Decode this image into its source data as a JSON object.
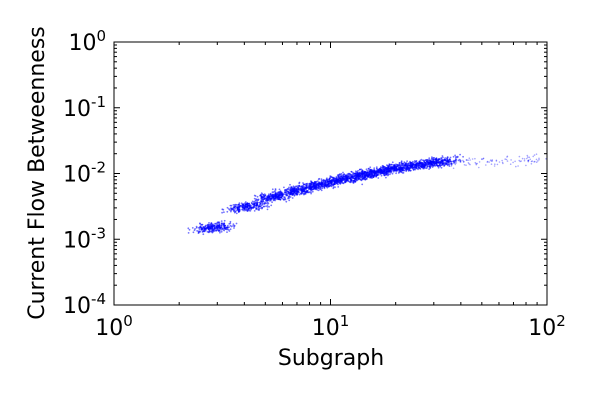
{
  "chart_data": {
    "type": "scatter",
    "xlabel": "Subgraph",
    "ylabel": "Current Flow Betweenness",
    "x_scale": "log",
    "y_scale": "log",
    "xlim": [
      1,
      100
    ],
    "ylim": [
      0.0001,
      1
    ],
    "grid": false,
    "x_ticks": [
      {
        "value": 1,
        "base": "10",
        "exp": "0"
      },
      {
        "value": 10,
        "base": "10",
        "exp": "1"
      },
      {
        "value": 100,
        "base": "10",
        "exp": "2"
      }
    ],
    "y_ticks": [
      {
        "value": 0.0001,
        "base": "10",
        "exp": "-4"
      },
      {
        "value": 0.001,
        "base": "10",
        "exp": "-3"
      },
      {
        "value": 0.01,
        "base": "10",
        "exp": "-2"
      },
      {
        "value": 0.1,
        "base": "10",
        "exp": "-1"
      },
      {
        "value": 1,
        "base": "10",
        "exp": "0"
      }
    ],
    "marker_color": "#0000ff",
    "clusters": [
      {
        "x": 2.9,
        "y": 0.0015
      },
      {
        "x": 4.1,
        "y": 0.0031
      },
      {
        "x": 5.5,
        "y": 0.0044
      },
      {
        "x": 7.0,
        "y": 0.0055
      },
      {
        "x": 8.8,
        "y": 0.0067
      },
      {
        "x": 11.0,
        "y": 0.008
      },
      {
        "x": 13.5,
        "y": 0.0092
      },
      {
        "x": 16.5,
        "y": 0.0105
      },
      {
        "x": 20.0,
        "y": 0.012
      },
      {
        "x": 25.0,
        "y": 0.0135
      },
      {
        "x": 32.0,
        "y": 0.015
      }
    ]
  }
}
